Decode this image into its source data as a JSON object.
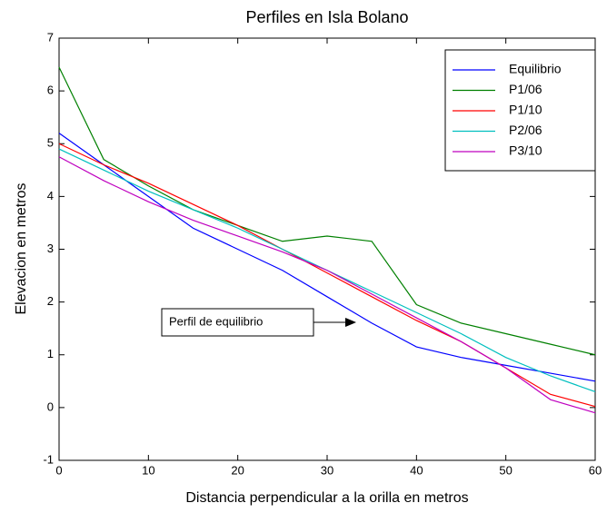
{
  "chart_data": {
    "type": "line",
    "title": "Perfiles en Isla Bolano",
    "x_label": "Distancia perpendicular a la orilla en metros",
    "y_label": "Elevacion en metros",
    "annotation": "Perfil de equilibrio",
    "x": [
      0,
      5,
      10,
      15,
      20,
      25,
      30,
      35,
      40,
      45,
      50,
      55,
      60
    ],
    "series": [
      {
        "name": "Equilibrio",
        "color": "#0000ff",
        "values": [
          5.2,
          4.6,
          4.0,
          3.4,
          3.0,
          2.6,
          2.1,
          1.6,
          1.15,
          0.95,
          0.8,
          0.65,
          0.5
        ]
      },
      {
        "name": "P1/06",
        "color": "#008000",
        "values": [
          6.45,
          4.7,
          4.2,
          3.75,
          3.45,
          3.15,
          3.25,
          3.15,
          1.95,
          1.6,
          1.4,
          1.2,
          1.0
        ]
      },
      {
        "name": "P1/10",
        "color": "#ff0000",
        "values": [
          5.0,
          4.6,
          4.25,
          3.85,
          3.45,
          3.0,
          2.55,
          2.1,
          1.65,
          1.25,
          0.75,
          0.25,
          0.02
        ]
      },
      {
        "name": "P2/06",
        "color": "#00bfbf",
        "values": [
          4.9,
          4.5,
          4.1,
          3.75,
          3.4,
          3.0,
          2.6,
          2.2,
          1.8,
          1.4,
          0.95,
          0.6,
          0.3
        ]
      },
      {
        "name": "P3/10",
        "color": "#bf00bf",
        "values": [
          4.75,
          4.3,
          3.9,
          3.55,
          3.25,
          2.95,
          2.6,
          2.15,
          1.7,
          1.25,
          0.75,
          0.15,
          -0.1
        ]
      }
    ],
    "xlim": [
      0,
      60
    ],
    "xticks": [
      0,
      10,
      20,
      30,
      40,
      50,
      60
    ],
    "ylim": [
      -1,
      7
    ],
    "yticks": [
      -1,
      0,
      1,
      2,
      3,
      4,
      5,
      6,
      7
    ],
    "grid": false,
    "legend": "northeast"
  }
}
